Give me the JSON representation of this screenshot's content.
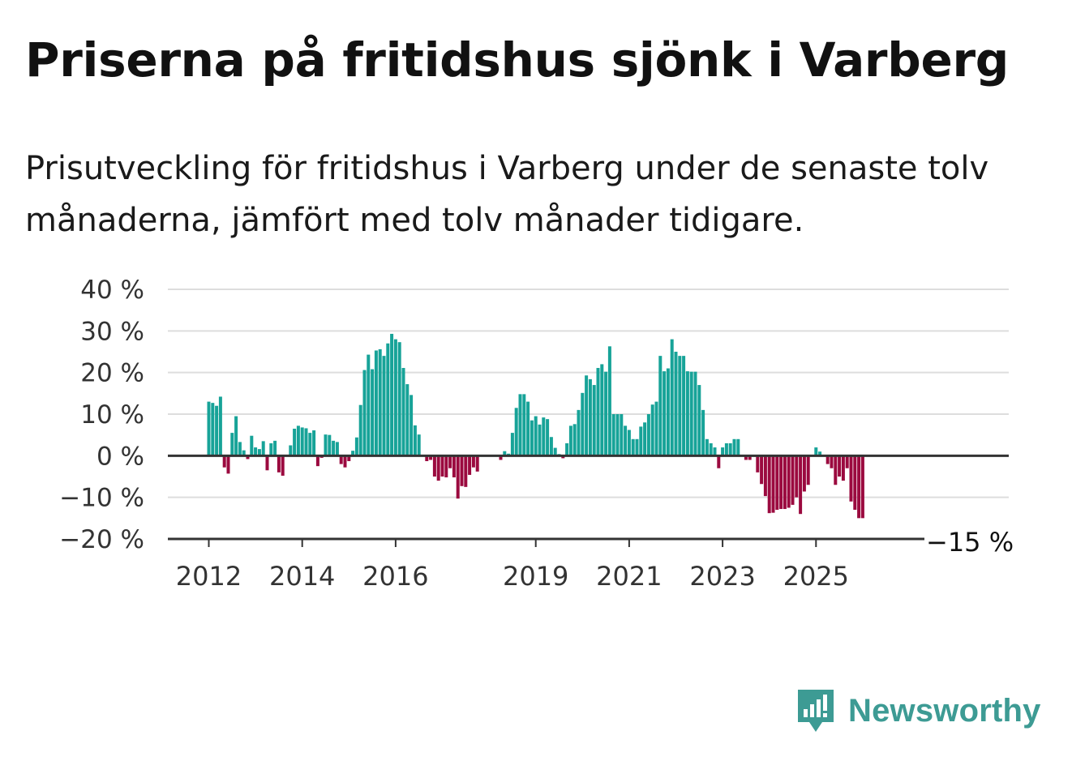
{
  "title": "Priserna på fritidshus sjönk i Varberg",
  "subtitle": "Prisutveckling för fritidshus i Varberg under de senaste tolv månaderna, jämfört med tolv månader tidigare.",
  "brand": {
    "name": "Newsworthy",
    "icon": "newsworthy-logo-icon"
  },
  "colors": {
    "positive": "#17a398",
    "negative": "#9b0a3f",
    "grid": "#dddddd",
    "axis": "#333333"
  },
  "chart_data": {
    "type": "bar",
    "title": "Priserna på fritidshus sjönk i Varberg",
    "xlabel": "",
    "ylabel": "",
    "ylim": [
      -20,
      40
    ],
    "y_ticks": [
      40,
      30,
      20,
      10,
      0,
      -10,
      -20
    ],
    "y_tick_labels": [
      "40 %",
      "30 %",
      "20 %",
      "10 %",
      "0 %",
      "−10 %",
      "−20 %"
    ],
    "x_ticks": [
      "2012",
      "2014",
      "2016",
      "2019",
      "2021",
      "2023",
      "2025"
    ],
    "grid": true,
    "legend": "none",
    "last_value_label": "−15 %",
    "start": "2012-01",
    "values": [
      13,
      12.7,
      12,
      14.2,
      -2.8,
      -4.3,
      5.5,
      9.5,
      3.3,
      1.3,
      -0.8,
      4.8,
      2,
      1.6,
      3.5,
      -3.5,
      3,
      3.6,
      -4,
      -4.8,
      0,
      2.5,
      6.5,
      7.2,
      6.8,
      6.6,
      5.5,
      6.1,
      -2.5,
      -0.5,
      5.1,
      5,
      3.6,
      3.3,
      -2,
      -2.8,
      -1.3,
      1.2,
      4.4,
      12.2,
      20.6,
      24.3,
      20.8,
      25.3,
      25.6,
      24,
      27,
      29.3,
      28,
      27.3,
      21.1,
      17.2,
      14.6,
      7.3,
      5.1,
      0,
      -1.3,
      -1,
      -5,
      -6,
      -5,
      -5.2,
      -3,
      -5.2,
      -10.3,
      -7.3,
      -7.5,
      -4.6,
      -2.8,
      -3.8,
      0,
      0,
      0,
      0,
      0,
      -1,
      1.1,
      0.5,
      5.5,
      11.5,
      14.8,
      14.8,
      13,
      8.5,
      9.5,
      7.5,
      9.2,
      8.8,
      4.5,
      1.9,
      0.4,
      -0.6,
      3,
      7.2,
      7.6,
      11,
      15.1,
      19.3,
      18.4,
      17,
      21.1,
      22,
      20.2,
      26.3,
      10,
      10,
      10,
      7.2,
      6.2,
      4,
      4,
      7,
      8,
      10,
      12.3,
      13,
      24,
      20.3,
      21,
      28,
      25,
      24,
      24,
      20.3,
      20.2,
      20.2,
      17,
      11,
      4,
      3,
      2,
      -3,
      2,
      3,
      3,
      4,
      4,
      0,
      -1,
      -1,
      0,
      -4,
      -6.8,
      -9.7,
      -13.8,
      -13.7,
      -13,
      -12.8,
      -12.8,
      -12.5,
      -11.8,
      -10,
      -14,
      -8.6,
      -7,
      0,
      2,
      1,
      0,
      -2,
      -3,
      -7,
      -5,
      -6,
      -3,
      -11,
      -13,
      -15,
      -15
    ]
  }
}
